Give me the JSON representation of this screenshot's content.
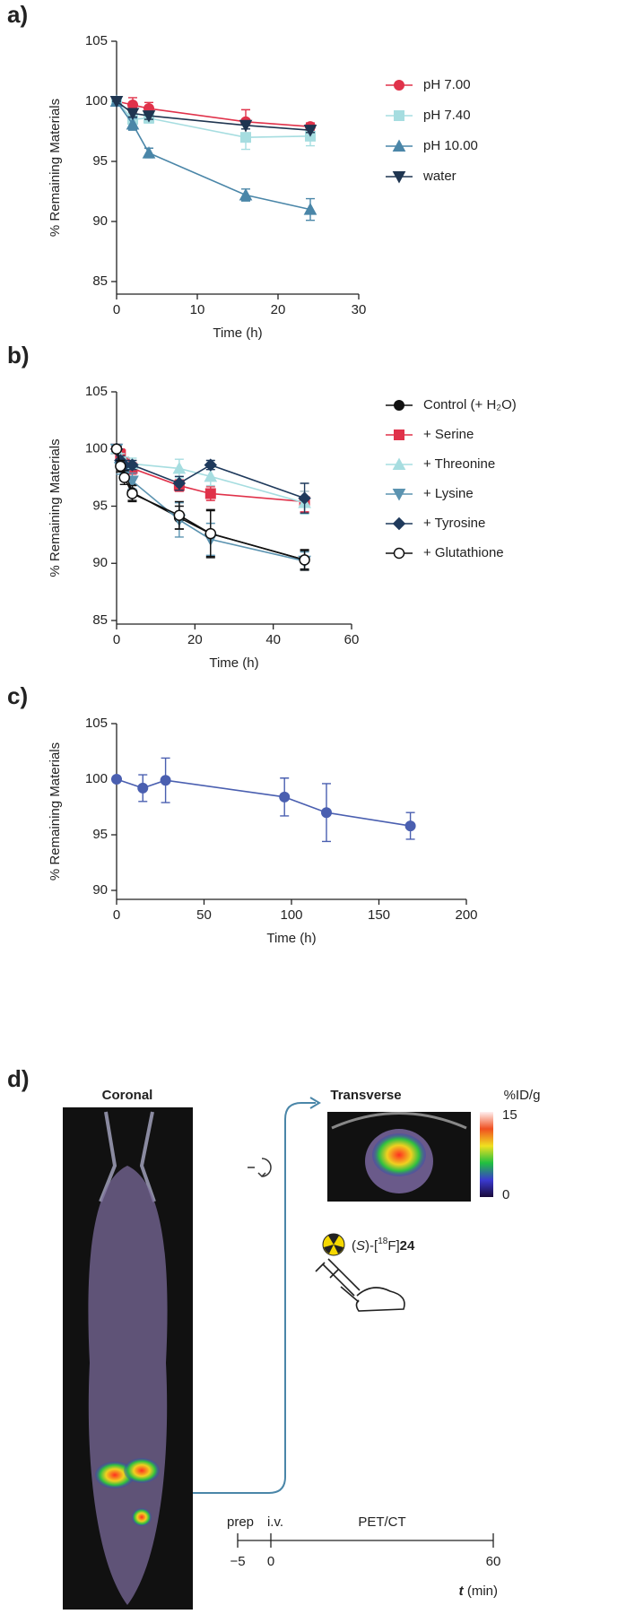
{
  "chart_data": [
    {
      "type": "line",
      "panel": "a)",
      "xlabel": "Time (h)",
      "ylabel": "% Remaining Materials",
      "xlim": [
        0,
        30
      ],
      "xticks": [
        0,
        10,
        20,
        30
      ],
      "ylim": [
        85,
        105
      ],
      "yticks": [
        85,
        90,
        95,
        100,
        105
      ],
      "x": [
        0,
        2,
        4,
        16,
        24
      ],
      "series": [
        {
          "name": "pH 7.00",
          "color": "#e0324a",
          "marker": "circle",
          "values": [
            100,
            99.7,
            99.4,
            98.3,
            97.9
          ],
          "errors": [
            0,
            0.6,
            0.5,
            1.0,
            0.3
          ]
        },
        {
          "name": "pH 7.40",
          "color": "#a6dde0",
          "marker": "square",
          "values": [
            100,
            98.5,
            98.6,
            97.0,
            97.1
          ],
          "errors": [
            0,
            0.5,
            0.4,
            1.0,
            0.8
          ]
        },
        {
          "name": "pH 10.00",
          "color": "#4a86a8",
          "marker": "triangle",
          "values": [
            100,
            98.1,
            95.7,
            92.2,
            91.0
          ],
          "errors": [
            0,
            0.5,
            0.4,
            0.5,
            0.9
          ]
        },
        {
          "name": "water",
          "color": "#1f3550",
          "marker": "triangle-down",
          "values": [
            100,
            99.0,
            98.8,
            98.0,
            97.6
          ],
          "errors": [
            0,
            0.3,
            0.3,
            0.3,
            0.2
          ]
        }
      ]
    },
    {
      "type": "line",
      "panel": "b)",
      "xlabel": "Time (h)",
      "ylabel": "% Remaining Materials",
      "xlim": [
        0,
        60
      ],
      "xticks": [
        0,
        20,
        40,
        60
      ],
      "ylim": [
        85,
        105
      ],
      "yticks": [
        85,
        90,
        95,
        100,
        105
      ],
      "x": [
        0,
        1,
        2,
        4,
        16,
        24,
        48
      ],
      "series": [
        {
          "name": "Control (+ H₂O)",
          "color": "#111111",
          "marker": "circle",
          "values": [
            100,
            99.0,
            98.2,
            96.2,
            94.0,
            92.6,
            90.3
          ],
          "errors": [
            0,
            0.5,
            0.5,
            0.7,
            1.0,
            2.0,
            0.8
          ]
        },
        {
          "name": "+ Serine",
          "color": "#e0324a",
          "marker": "square",
          "values": [
            100,
            99.5,
            98.8,
            98.3,
            96.8,
            96.1,
            95.4
          ],
          "errors": [
            0,
            0.5,
            0.5,
            0.5,
            0.5,
            0.6,
            0.9
          ]
        },
        {
          "name": "+ Threonine",
          "color": "#a6dde0",
          "marker": "triangle",
          "values": [
            100,
            99.2,
            98.9,
            98.7,
            98.3,
            97.6,
            95.3
          ],
          "errors": [
            0,
            0.4,
            0.4,
            0.5,
            0.8,
            0.8,
            1.0
          ]
        },
        {
          "name": "+ Lysine",
          "color": "#5b93b0",
          "marker": "triangle-down",
          "values": [
            100,
            98.4,
            97.8,
            97.2,
            93.8,
            92.1,
            90.2
          ],
          "errors": [
            0,
            0.6,
            0.6,
            0.7,
            1.5,
            1.4,
            0.8
          ]
        },
        {
          "name": "+ Tyrosine",
          "color": "#1f3a5c",
          "marker": "diamond",
          "values": [
            100,
            99.0,
            98.6,
            98.6,
            97.0,
            98.6,
            95.7
          ],
          "errors": [
            0,
            0.4,
            0.4,
            0.4,
            0.6,
            0.4,
            1.3
          ]
        },
        {
          "name": "+ Glutathione",
          "color": "#111111",
          "marker": "open-circle",
          "values": [
            100,
            98.5,
            97.5,
            96.1,
            94.2,
            92.6,
            90.3
          ],
          "errors": [
            0,
            0.5,
            0.6,
            0.7,
            1.2,
            2.1,
            0.9
          ]
        }
      ]
    },
    {
      "type": "line",
      "panel": "c)",
      "xlabel": "Time (h)",
      "ylabel": "% Remaining Materials",
      "xlim": [
        0,
        200
      ],
      "xticks": [
        0,
        50,
        100,
        150,
        200
      ],
      "ylim": [
        90,
        105
      ],
      "yticks": [
        90,
        95,
        100,
        105
      ],
      "x": [
        0,
        15,
        28,
        96,
        120,
        168
      ],
      "series": [
        {
          "color": "#4a5fb0",
          "marker": "circle",
          "values": [
            100,
            99.2,
            99.9,
            98.4,
            97.0,
            95.8
          ],
          "errors": [
            0,
            1.2,
            2.0,
            1.7,
            2.6,
            1.2
          ]
        }
      ]
    }
  ],
  "diagram": {
    "panel": "d)",
    "coronal": "Coronal",
    "transverse": "Transverse",
    "scale_unit": "%ID/g",
    "scale_max": "15",
    "scale_min": "0",
    "compound": [
      "(",
      "S",
      ")-[",
      "18",
      "F]",
      "24"
    ],
    "timeline": {
      "steps": [
        "prep",
        "i.v.",
        "PET/CT"
      ],
      "ticks": [
        "−5",
        "0",
        "60"
      ],
      "unit_symbol": "t",
      "unit": " (min)"
    }
  }
}
